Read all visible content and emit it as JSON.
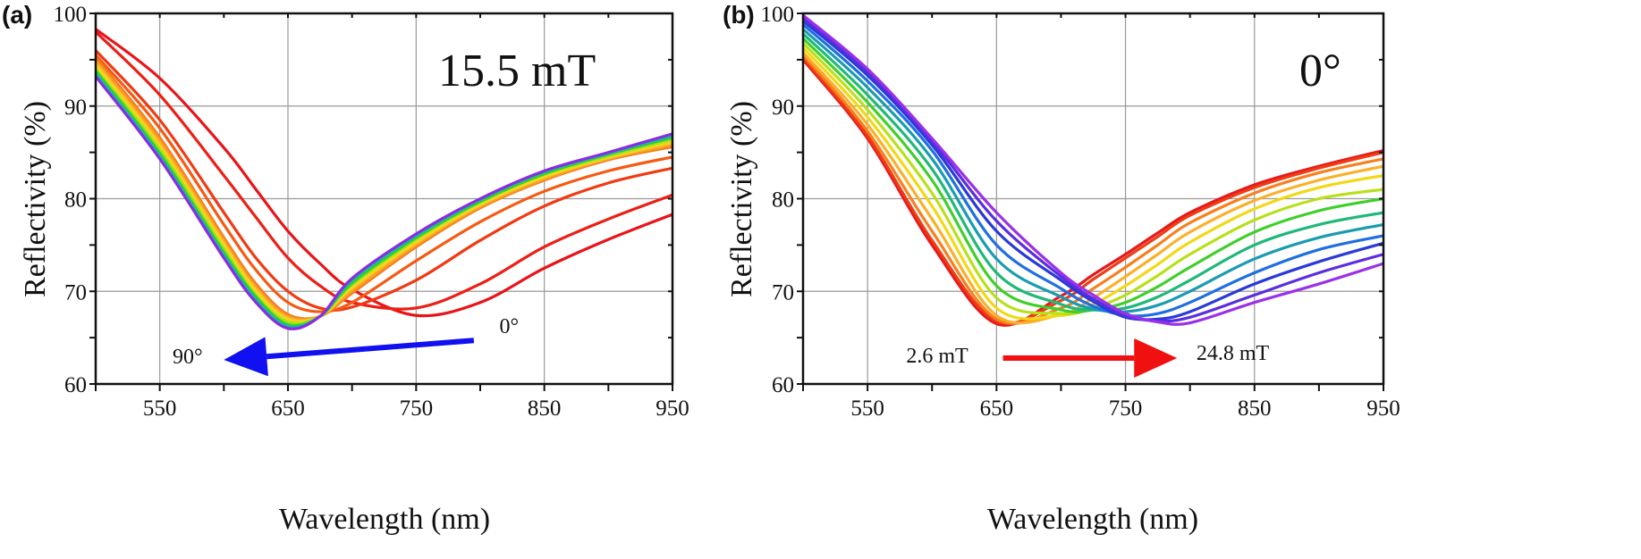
{
  "chart_data": [
    {
      "type": "line",
      "panel_label": "(a)",
      "title": "15.5 mT",
      "xlabel": "Wavelength (nm)",
      "ylabel": "Reflectivity (%)",
      "xlim": [
        500,
        950
      ],
      "ylim": [
        60,
        100
      ],
      "xticks": [
        "550",
        "650",
        "750",
        "850",
        "950"
      ],
      "yticks": [
        "60",
        "70",
        "80",
        "90",
        "100"
      ],
      "grid": true,
      "x": [
        500,
        550,
        600,
        625,
        650,
        675,
        700,
        750,
        800,
        850,
        900,
        950
      ],
      "series": [
        {
          "color": "#e8141a",
          "values": [
            98.3,
            93.0,
            85.5,
            81.0,
            76.5,
            73.0,
            70.2,
            67.4,
            68.8,
            72.5,
            75.6,
            78.3
          ]
        },
        {
          "color": "#ec1f16",
          "values": [
            98.0,
            91.2,
            82.5,
            78.0,
            73.6,
            70.6,
            68.8,
            68.2,
            70.8,
            74.8,
            77.8,
            80.4
          ]
        },
        {
          "color": "#f03a12",
          "values": [
            96.0,
            88.5,
            78.5,
            73.6,
            70.0,
            68.2,
            68.3,
            71.2,
            75.5,
            79.2,
            81.7,
            83.3
          ]
        },
        {
          "color": "#f55a12",
          "values": [
            95.5,
            87.6,
            77.2,
            72.3,
            68.8,
            67.8,
            68.8,
            73.3,
            77.5,
            80.8,
            83.0,
            84.5
          ]
        },
        {
          "color": "#f7791a",
          "values": [
            95.2,
            86.6,
            75.8,
            70.8,
            67.5,
            67.3,
            69.8,
            74.8,
            79.0,
            82.0,
            84.2,
            85.6
          ]
        },
        {
          "color": "#fa9a26",
          "values": [
            94.9,
            86.3,
            75.5,
            70.5,
            67.3,
            67.3,
            70.0,
            75.0,
            79.1,
            82.1,
            84.3,
            85.8
          ]
        },
        {
          "color": "#fbbf2a",
          "values": [
            94.6,
            85.9,
            75.2,
            70.2,
            67.1,
            67.3,
            70.3,
            75.2,
            79.3,
            82.3,
            84.4,
            86.0
          ]
        },
        {
          "color": "#f2dc16",
          "values": [
            94.3,
            85.6,
            74.9,
            69.9,
            66.9,
            67.3,
            70.5,
            75.4,
            79.4,
            82.4,
            84.5,
            86.2
          ]
        },
        {
          "color": "#a8e01c",
          "values": [
            94.0,
            85.3,
            74.6,
            69.6,
            66.7,
            67.3,
            70.7,
            75.6,
            79.6,
            82.6,
            84.6,
            86.4
          ]
        },
        {
          "color": "#30d030",
          "values": [
            93.8,
            84.9,
            74.2,
            69.4,
            66.4,
            67.3,
            70.9,
            75.8,
            79.7,
            82.7,
            84.8,
            86.6
          ]
        },
        {
          "color": "#18b8a8",
          "values": [
            93.5,
            84.6,
            73.9,
            69.1,
            66.2,
            67.3,
            71.2,
            76.0,
            79.9,
            82.9,
            84.9,
            86.8
          ]
        },
        {
          "color": "#8b2be2",
          "values": [
            93.2,
            84.3,
            73.6,
            68.8,
            66.0,
            67.3,
            71.4,
            76.2,
            80.0,
            83.0,
            85.0,
            87.0
          ]
        }
      ],
      "annotations": [
        {
          "text": "0°",
          "x": 815,
          "y": 65.5
        },
        {
          "text": "90°",
          "x": 560,
          "y": 62.2
        }
      ],
      "arrow": {
        "color": "#1010f0",
        "from": [
          795,
          64.7
        ],
        "to": [
          600,
          62.6
        ]
      }
    },
    {
      "type": "line",
      "panel_label": "(b)",
      "title": "0°",
      "xlabel": "Wavelength (nm)",
      "ylabel": "Reflectivity (%)",
      "xlim": [
        500,
        950
      ],
      "ylim": [
        60,
        100
      ],
      "xticks": [
        "550",
        "650",
        "750",
        "850",
        "950"
      ],
      "yticks": [
        "60",
        "70",
        "80",
        "90",
        "100"
      ],
      "grid": true,
      "x": [
        500,
        550,
        600,
        650,
        700,
        725,
        750,
        775,
        800,
        850,
        900,
        950
      ],
      "series": [
        {
          "color": "#e41a1c",
          "values": [
            95.0,
            86.5,
            75.0,
            66.5,
            69.5,
            71.8,
            74.0,
            76.3,
            78.5,
            81.5,
            83.5,
            85.2
          ]
        },
        {
          "color": "#f03c14",
          "values": [
            95.2,
            86.8,
            75.5,
            66.8,
            69.0,
            71.3,
            73.6,
            75.9,
            78.2,
            81.2,
            83.3,
            85.0
          ]
        },
        {
          "color": "#f7801e",
          "values": [
            95.5,
            87.3,
            76.5,
            67.0,
            68.2,
            70.3,
            72.6,
            75.0,
            77.4,
            80.6,
            82.8,
            84.3
          ]
        },
        {
          "color": "#fbb02a",
          "values": [
            95.8,
            88.0,
            77.8,
            67.4,
            67.5,
            69.3,
            71.6,
            74.0,
            76.4,
            79.8,
            82.0,
            83.5
          ]
        },
        {
          "color": "#f2d816",
          "values": [
            96.3,
            88.8,
            79.2,
            68.2,
            67.4,
            68.6,
            70.6,
            72.9,
            75.3,
            78.9,
            81.2,
            82.5
          ]
        },
        {
          "color": "#b8e01a",
          "values": [
            96.8,
            89.6,
            80.6,
            69.3,
            67.6,
            68.2,
            69.6,
            71.7,
            74.0,
            77.7,
            80.0,
            81.0
          ]
        },
        {
          "color": "#3fcf2a",
          "values": [
            97.3,
            90.4,
            82.0,
            70.6,
            68.0,
            68.0,
            68.8,
            70.5,
            72.6,
            76.4,
            78.7,
            80.0
          ]
        },
        {
          "color": "#1fb87a",
          "values": [
            97.8,
            91.2,
            83.2,
            72.0,
            68.6,
            68.0,
            68.2,
            69.4,
            71.2,
            75.0,
            77.2,
            78.5
          ]
        },
        {
          "color": "#1a9cb0",
          "values": [
            98.3,
            92.0,
            84.3,
            73.5,
            69.4,
            68.1,
            67.8,
            68.5,
            70.0,
            73.5,
            75.8,
            77.2
          ]
        },
        {
          "color": "#1f6fe0",
          "values": [
            98.8,
            92.7,
            85.2,
            75.0,
            70.3,
            68.4,
            67.4,
            67.6,
            68.8,
            72.0,
            74.5,
            76.0
          ]
        },
        {
          "color": "#2a3ad8",
          "values": [
            99.2,
            93.3,
            85.8,
            76.5,
            71.2,
            68.9,
            67.2,
            67.0,
            67.8,
            70.8,
            73.2,
            75.2
          ]
        },
        {
          "color": "#5a2ee0",
          "values": [
            99.5,
            93.7,
            86.2,
            77.6,
            71.6,
            69.2,
            67.4,
            66.8,
            67.2,
            69.6,
            72.0,
            74.0
          ]
        },
        {
          "color": "#9a30e8",
          "values": [
            99.8,
            94.0,
            86.5,
            78.5,
            72.0,
            69.6,
            67.6,
            66.7,
            66.6,
            68.8,
            70.8,
            73.0
          ]
        }
      ],
      "annotations": [
        {
          "text": "2.6 mT",
          "x": 580,
          "y": 62.3
        },
        {
          "text": "24.8 mT",
          "x": 805,
          "y": 62.6
        }
      ],
      "arrow": {
        "color": "#f01010",
        "from": [
          655,
          62.8
        ],
        "to": [
          790,
          62.8
        ]
      }
    }
  ]
}
